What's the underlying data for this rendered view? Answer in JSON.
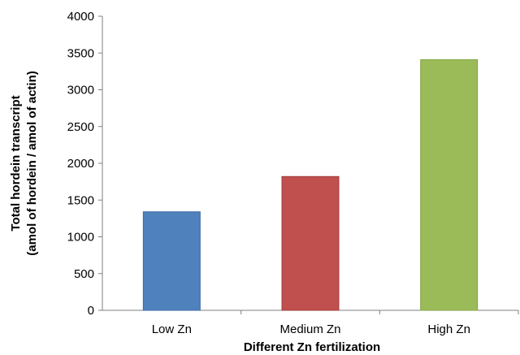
{
  "chart_data": {
    "type": "bar",
    "categories": [
      "Low Zn",
      "Medium Zn",
      "High Zn"
    ],
    "values": [
      1340,
      1820,
      3410
    ],
    "colors": [
      "#4f81bd",
      "#c0504d",
      "#9bbb59"
    ],
    "border_colors": [
      "#3a6aa3",
      "#a23e3b",
      "#84a347"
    ],
    "xlabel": "Different Zn fertilization",
    "ylabel_lines": [
      "Total hordein transcript",
      "(amol of hordein / amol of actin)"
    ],
    "ylim": [
      0,
      4000
    ],
    "yticks": [
      0,
      500,
      1000,
      1500,
      2000,
      2500,
      3000,
      3500,
      4000
    ],
    "grid": false,
    "legend": "none"
  }
}
